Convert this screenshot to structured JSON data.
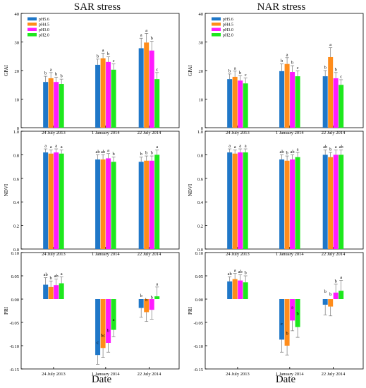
{
  "titles": {
    "left": "SAR stress",
    "right": "NAR stress"
  },
  "xlabel": "Date",
  "colors": {
    "pH5.6": "#1f77c8",
    "pH4.5": "#ff8c1a",
    "pH3.0": "#ff1aff",
    "pH2.0": "#1ee81e"
  },
  "chart_data": [
    {
      "type": "bar",
      "panel": "SAR-GPAI",
      "ylabel": "GPAI",
      "ylim": [
        0,
        40
      ],
      "yticks": [
        "0",
        "10",
        "20",
        "30",
        "40"
      ],
      "categories": [
        "24 July 2013",
        "1 January 2014",
        "22 July 2014"
      ],
      "legend": [
        "pH5.6",
        "pH4.5",
        "pH3.0",
        "pH2.0"
      ],
      "series": [
        {
          "name": "pH5.6",
          "values": [
            16,
            22,
            27.8
          ],
          "errors": [
            2,
            2,
            3.5
          ],
          "letters": [
            "b",
            "b",
            "a"
          ]
        },
        {
          "name": "pH4.5",
          "values": [
            17.3,
            24.3,
            29.8
          ],
          "errors": [
            2,
            1.8,
            3.2
          ],
          "letters": [
            "a",
            "a",
            "a"
          ]
        },
        {
          "name": "pH3.0",
          "values": [
            16,
            23,
            27
          ],
          "errors": [
            1.7,
            1.8,
            3.2
          ],
          "letters": [
            "b",
            "b",
            "b"
          ]
        },
        {
          "name": "pH2.0",
          "values": [
            15.3,
            20.3,
            17
          ],
          "errors": [
            1.7,
            2,
            2.3
          ],
          "letters": [
            "b",
            "c",
            "c"
          ]
        }
      ]
    },
    {
      "type": "bar",
      "panel": "NAR-GPAI",
      "ylabel": "GPAI",
      "ylim": [
        0,
        40
      ],
      "yticks": [
        "0",
        "10",
        "20",
        "30",
        "40"
      ],
      "categories": [
        "24 July 2013",
        "1 January 2014",
        "22 July 2014"
      ],
      "legend": [
        "pH5.6",
        "pH4.5",
        "pH3.0",
        "pH2.0"
      ],
      "series": [
        {
          "name": "pH5.6",
          "values": [
            17,
            19.8,
            18
          ],
          "errors": [
            1.8,
            2.5,
            2
          ],
          "letters": [
            "b",
            "b",
            "b"
          ]
        },
        {
          "name": "pH4.5",
          "values": [
            17.8,
            22.3,
            24.7
          ],
          "errors": [
            2,
            2.2,
            3.3
          ],
          "letters": [
            "a",
            "a",
            "a"
          ]
        },
        {
          "name": "pH3.0",
          "values": [
            16.5,
            19.5,
            17.3
          ],
          "errors": [
            1.7,
            2.2,
            2
          ],
          "letters": [
            "b",
            "b",
            "b"
          ]
        },
        {
          "name": "pH2.0",
          "values": [
            15.5,
            18,
            15
          ],
          "errors": [
            1.9,
            1.9,
            1.8
          ],
          "letters": [
            "c",
            "c",
            "c"
          ]
        }
      ]
    },
    {
      "type": "bar",
      "panel": "SAR-NDVI",
      "ylabel": "NDVI",
      "ylim": [
        0,
        1.0
      ],
      "yticks": [
        "0.0",
        "0.2",
        "0.4",
        "0.6",
        "0.8",
        "1.0"
      ],
      "categories": [
        "24 July 2013",
        "1 January 2014",
        "22 July 2014"
      ],
      "series": [
        {
          "name": "pH5.6",
          "values": [
            0.82,
            0.76,
            0.74
          ],
          "errors": [
            0.03,
            0.04,
            0.04
          ],
          "letters": [
            "a",
            "ab",
            "b"
          ]
        },
        {
          "name": "pH4.5",
          "values": [
            0.81,
            0.76,
            0.75
          ],
          "errors": [
            0.03,
            0.04,
            0.04
          ],
          "letters": [
            "a",
            "ab",
            "b"
          ]
        },
        {
          "name": "pH3.0",
          "values": [
            0.82,
            0.77,
            0.75
          ],
          "errors": [
            0.03,
            0.04,
            0.04
          ],
          "letters": [
            "a",
            "a",
            "b"
          ]
        },
        {
          "name": "pH2.0",
          "values": [
            0.81,
            0.74,
            0.8
          ],
          "errors": [
            0.03,
            0.04,
            0.04
          ],
          "letters": [
            "a",
            "b",
            "a"
          ]
        }
      ]
    },
    {
      "type": "bar",
      "panel": "NAR-NDVI",
      "ylabel": "NDVI",
      "ylim": [
        0,
        1.0
      ],
      "yticks": [
        "0.0",
        "0.2",
        "0.4",
        "0.6",
        "0.8",
        "1.0"
      ],
      "categories": [
        "24 July 2013",
        "1 January 2014",
        "22 July 2014"
      ],
      "series": [
        {
          "name": "pH5.6",
          "values": [
            0.82,
            0.76,
            0.8
          ],
          "errors": [
            0.03,
            0.04,
            0.04
          ],
          "letters": [
            "a",
            "ab",
            "ab"
          ]
        },
        {
          "name": "pH4.5",
          "values": [
            0.81,
            0.75,
            0.78
          ],
          "errors": [
            0.03,
            0.04,
            0.04
          ],
          "letters": [
            "a",
            "b",
            "b"
          ]
        },
        {
          "name": "pH3.0",
          "values": [
            0.82,
            0.76,
            0.8
          ],
          "errors": [
            0.03,
            0.04,
            0.04
          ],
          "letters": [
            "a",
            "ab",
            "a"
          ]
        },
        {
          "name": "pH2.0",
          "values": [
            0.82,
            0.78,
            0.8
          ],
          "errors": [
            0.03,
            0.04,
            0.04
          ],
          "letters": [
            "a",
            "a",
            "ab"
          ]
        }
      ]
    },
    {
      "type": "bar",
      "panel": "SAR-PRI",
      "ylabel": "PRI",
      "ylim": [
        -0.15,
        0.1
      ],
      "yticks": [
        "-0.15",
        "-0.10",
        "-0.05",
        "0.00",
        "0.05",
        "0.10"
      ],
      "categories": [
        "24 July 2013",
        "1 January 2014",
        "22 July 2014"
      ],
      "series": [
        {
          "name": "pH5.6",
          "values": [
            0.031,
            -0.12,
            -0.019
          ],
          "errors": [
            0.015,
            0.02,
            0.02
          ],
          "letters": [
            "ab",
            "c",
            "b"
          ]
        },
        {
          "name": "pH4.5",
          "values": [
            0.026,
            -0.105,
            -0.028
          ],
          "errors": [
            0.013,
            0.02,
            0.02
          ],
          "letters": [
            "b",
            "bc",
            "b"
          ]
        },
        {
          "name": "pH3.0",
          "values": [
            0.03,
            -0.094,
            -0.023
          ],
          "errors": [
            0.013,
            0.02,
            0.02
          ],
          "letters": [
            "ab",
            "b",
            "b"
          ]
        },
        {
          "name": "pH2.0",
          "values": [
            0.034,
            -0.066,
            0.006
          ],
          "errors": [
            0.014,
            0.015,
            0.02
          ],
          "letters": [
            "a",
            "a",
            "a"
          ]
        }
      ]
    },
    {
      "type": "bar",
      "panel": "NAR-PRI",
      "ylabel": "PRI",
      "ylim": [
        -0.15,
        0.1
      ],
      "yticks": [
        "-0.15",
        "-0.10",
        "-0.05",
        "0.00",
        "0.05",
        "0.10"
      ],
      "categories": [
        "24 July 2013",
        "1 January 2014",
        "22 July 2014"
      ],
      "series": [
        {
          "name": "pH5.6",
          "values": [
            0.038,
            -0.087,
            -0.012
          ],
          "errors": [
            0.01,
            0.027,
            0.022
          ],
          "letters": [
            "ab",
            "c",
            "b"
          ]
        },
        {
          "name": "pH4.5",
          "values": [
            0.043,
            -0.1,
            -0.016
          ],
          "errors": [
            0.012,
            0.02,
            0.02
          ],
          "letters": [
            "a",
            "b",
            "b"
          ]
        },
        {
          "name": "pH3.0",
          "values": [
            0.04,
            -0.046,
            0.014
          ],
          "errors": [
            0.012,
            0.022,
            0.018
          ],
          "letters": [
            "ab",
            "a",
            "b"
          ]
        },
        {
          "name": "pH2.0",
          "values": [
            0.036,
            -0.06,
            0.018
          ],
          "errors": [
            0.014,
            0.022,
            0.022
          ],
          "letters": [
            "b",
            "b",
            "a"
          ]
        }
      ]
    }
  ]
}
